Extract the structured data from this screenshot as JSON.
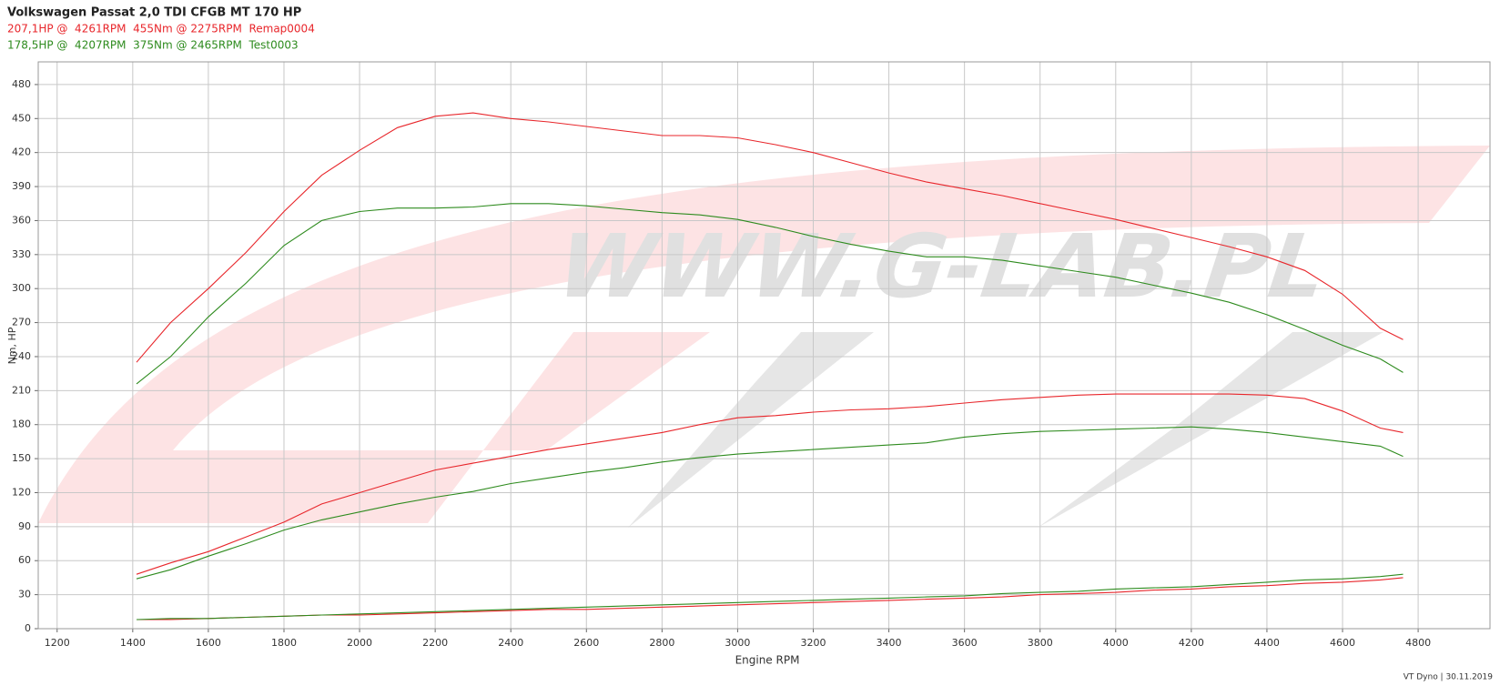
{
  "chart_data": {
    "type": "line",
    "title": "Volkswagen Passat 2,0 TDI CFGB MT 170 HP",
    "x_label": "Engine RPM",
    "y_label": "Nm, HP",
    "watermark": "WWW.G-LAB.PL",
    "footer": "VT Dyno | 30.11.2019",
    "grid": true,
    "xlim": [
      1150,
      4990
    ],
    "ylim": [
      0,
      500
    ],
    "xticks": [
      1200,
      1400,
      1600,
      1800,
      2000,
      2200,
      2400,
      2600,
      2800,
      3000,
      3200,
      3400,
      3600,
      3800,
      4000,
      4200,
      4400,
      4600,
      4800
    ],
    "yticks": [
      0,
      30,
      60,
      90,
      120,
      150,
      180,
      210,
      240,
      270,
      300,
      330,
      360,
      390,
      420,
      450,
      480
    ],
    "x": [
      1410,
      1500,
      1600,
      1700,
      1800,
      1900,
      2000,
      2100,
      2200,
      2300,
      2400,
      2500,
      2600,
      2700,
      2800,
      2900,
      3000,
      3100,
      3200,
      3300,
      3400,
      3500,
      3600,
      3700,
      3800,
      3900,
      4000,
      4100,
      4200,
      4300,
      4400,
      4500,
      4600,
      4700,
      4760
    ],
    "runs": [
      {
        "label": "207,1HP @  4261RPM  455Nm @ 2275RPM  Remap0004",
        "color": "#e8262b",
        "torque": [
          235,
          270,
          300,
          332,
          368,
          400,
          422,
          442,
          452,
          455,
          450,
          447,
          443,
          439,
          435,
          435,
          433,
          427,
          420,
          411,
          402,
          394,
          388,
          382,
          375,
          368,
          361,
          353,
          345,
          337,
          328,
          316,
          295,
          265,
          255
        ],
        "power": [
          48,
          58,
          68,
          81,
          94,
          110,
          120,
          130,
          140,
          146,
          152,
          158,
          163,
          168,
          173,
          180,
          186,
          188,
          191,
          193,
          194,
          196,
          199,
          202,
          204,
          206,
          207,
          207,
          207,
          207,
          206,
          203,
          192,
          177,
          173
        ],
        "loss": [
          8,
          8,
          9,
          10,
          11,
          12,
          12,
          13,
          14,
          15,
          16,
          17,
          17,
          18,
          19,
          20,
          21,
          22,
          23,
          24,
          25,
          26,
          27,
          28,
          30,
          31,
          32,
          34,
          35,
          37,
          38,
          40,
          41,
          43,
          45
        ]
      },
      {
        "label": "178,5HP @  4207RPM  375Nm @ 2465RPM  Test0003",
        "color": "#2e8b1e",
        "torque": [
          216,
          240,
          275,
          305,
          338,
          360,
          368,
          371,
          371,
          372,
          375,
          375,
          373,
          370,
          367,
          365,
          361,
          354,
          346,
          339,
          333,
          328,
          328,
          325,
          320,
          315,
          310,
          303,
          296,
          288,
          277,
          264,
          250,
          238,
          226
        ],
        "power": [
          44,
          52,
          64,
          75,
          87,
          96,
          103,
          110,
          116,
          121,
          128,
          133,
          138,
          142,
          147,
          151,
          154,
          156,
          158,
          160,
          162,
          164,
          169,
          172,
          174,
          175,
          176,
          177,
          178,
          176,
          173,
          169,
          165,
          161,
          152
        ],
        "loss": [
          8,
          9,
          9,
          10,
          11,
          12,
          13,
          14,
          15,
          16,
          17,
          18,
          19,
          20,
          21,
          22,
          23,
          24,
          25,
          26,
          27,
          28,
          29,
          31,
          32,
          33,
          35,
          36,
          37,
          39,
          41,
          43,
          44,
          46,
          48
        ]
      }
    ]
  }
}
